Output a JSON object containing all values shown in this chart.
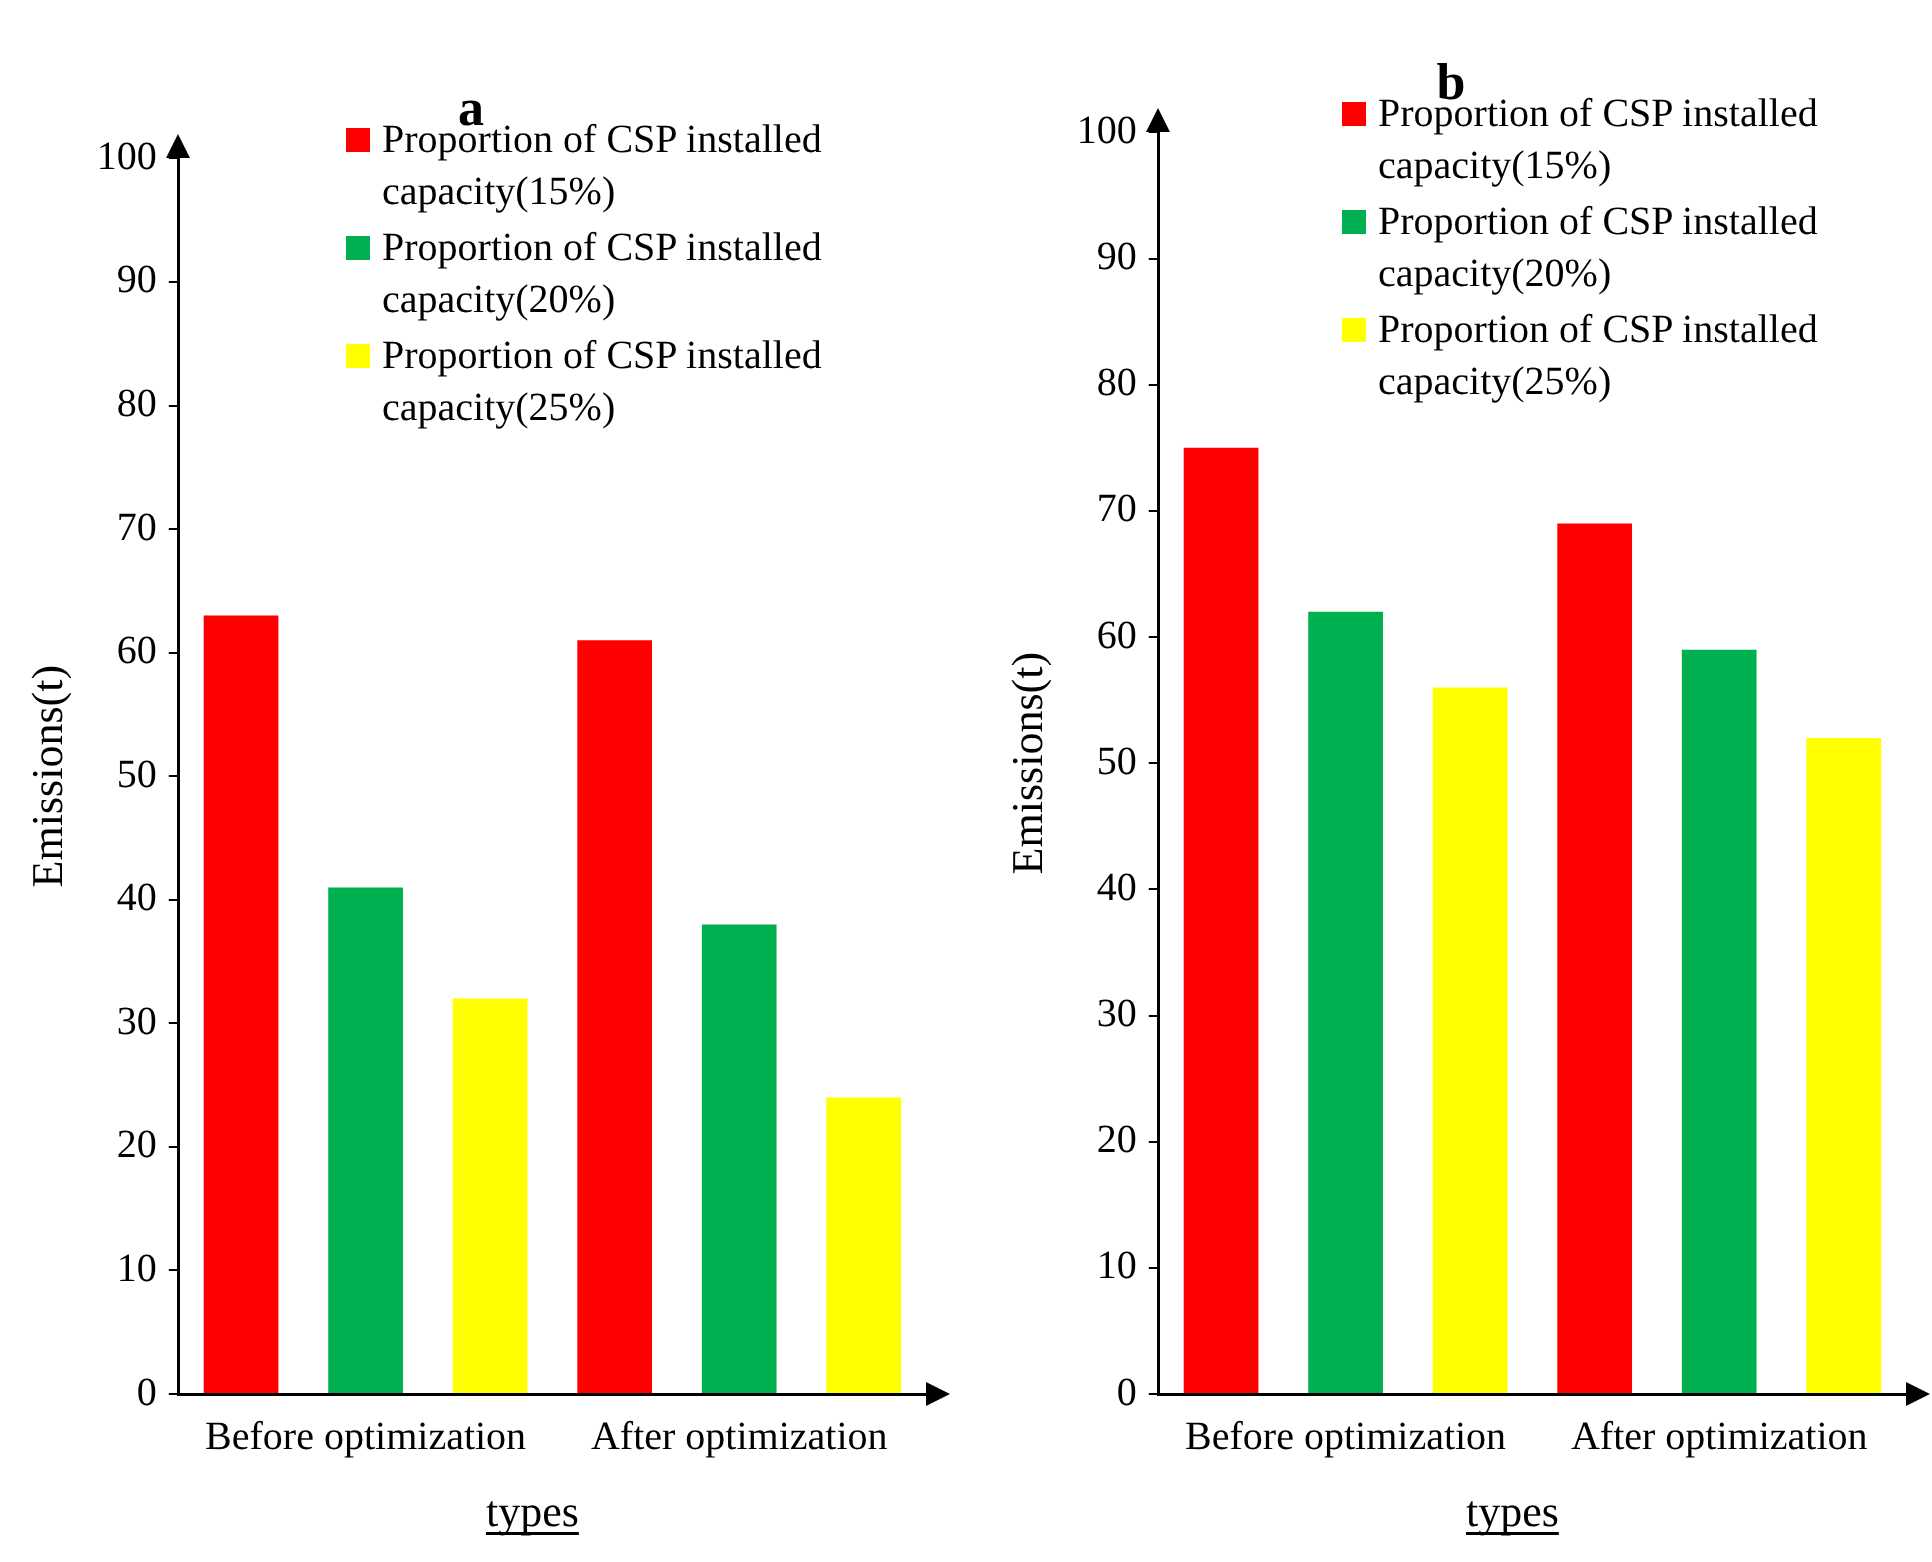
{
  "chart_data": [
    {
      "type": "bar",
      "title": "a",
      "xlabel": "types",
      "ylabel": "Emissions(t)",
      "categories": [
        "Before optimization",
        "After optimization"
      ],
      "series": [
        {
          "name": "Proportion of CSP installed capacity(15%)",
          "color": "#ff0000",
          "values": [
            63,
            61
          ]
        },
        {
          "name": "Proportion of CSP installed capacity(20%)",
          "color": "#00b050",
          "values": [
            41,
            38
          ]
        },
        {
          "name": "Proportion of CSP installed capacity(25%)",
          "color": "#ffff00",
          "values": [
            32,
            24
          ]
        }
      ],
      "ylim": [
        0,
        100
      ],
      "yticks": [
        0,
        10,
        20,
        30,
        40,
        50,
        60,
        70,
        80,
        90,
        100
      ],
      "grid": false,
      "legend": "top right"
    },
    {
      "type": "bar",
      "title": "b",
      "xlabel": "types",
      "ylabel": "Emissions(t)",
      "categories": [
        "Before optimization",
        "After optimization"
      ],
      "series": [
        {
          "name": "Proportion of CSP installed capacity(15%)",
          "color": "#ff0000",
          "values": [
            75,
            69
          ]
        },
        {
          "name": "Proportion of CSP installed capacity(20%)",
          "color": "#00b050",
          "values": [
            62,
            59
          ]
        },
        {
          "name": "Proportion of CSP installed capacity(25%)",
          "color": "#ffff00",
          "values": [
            56,
            52
          ]
        }
      ],
      "ylim": [
        0,
        100
      ],
      "yticks": [
        0,
        10,
        20,
        30,
        40,
        50,
        60,
        70,
        80,
        90,
        100
      ],
      "grid": false,
      "legend": "top right"
    }
  ]
}
